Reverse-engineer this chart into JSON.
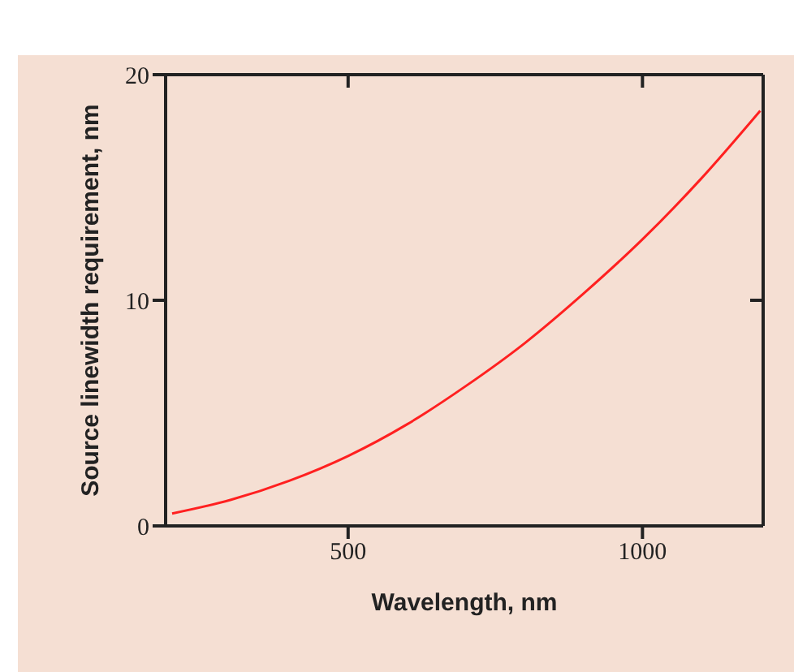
{
  "chart_data": {
    "type": "line",
    "xlabel": "Wavelength, nm",
    "ylabel": "Source linewidth requirement, nm",
    "x": [
      201,
      300,
      400,
      500,
      600,
      700,
      800,
      900,
      1000,
      1100,
      1200
    ],
    "series": [
      {
        "color": "#ff2020",
        "values": [
          0.55,
          1.15,
          2.0,
          3.1,
          4.5,
          6.2,
          8.1,
          10.3,
          12.7,
          15.4,
          18.4
        ]
      }
    ],
    "xlim": [
      190,
      1205
    ],
    "xticks": [
      500,
      1000
    ],
    "ylim": [
      0,
      20
    ],
    "yticks": [
      0,
      10,
      20
    ],
    "grid": false,
    "legend": false,
    "marker": "none",
    "line_style": "solid"
  }
}
